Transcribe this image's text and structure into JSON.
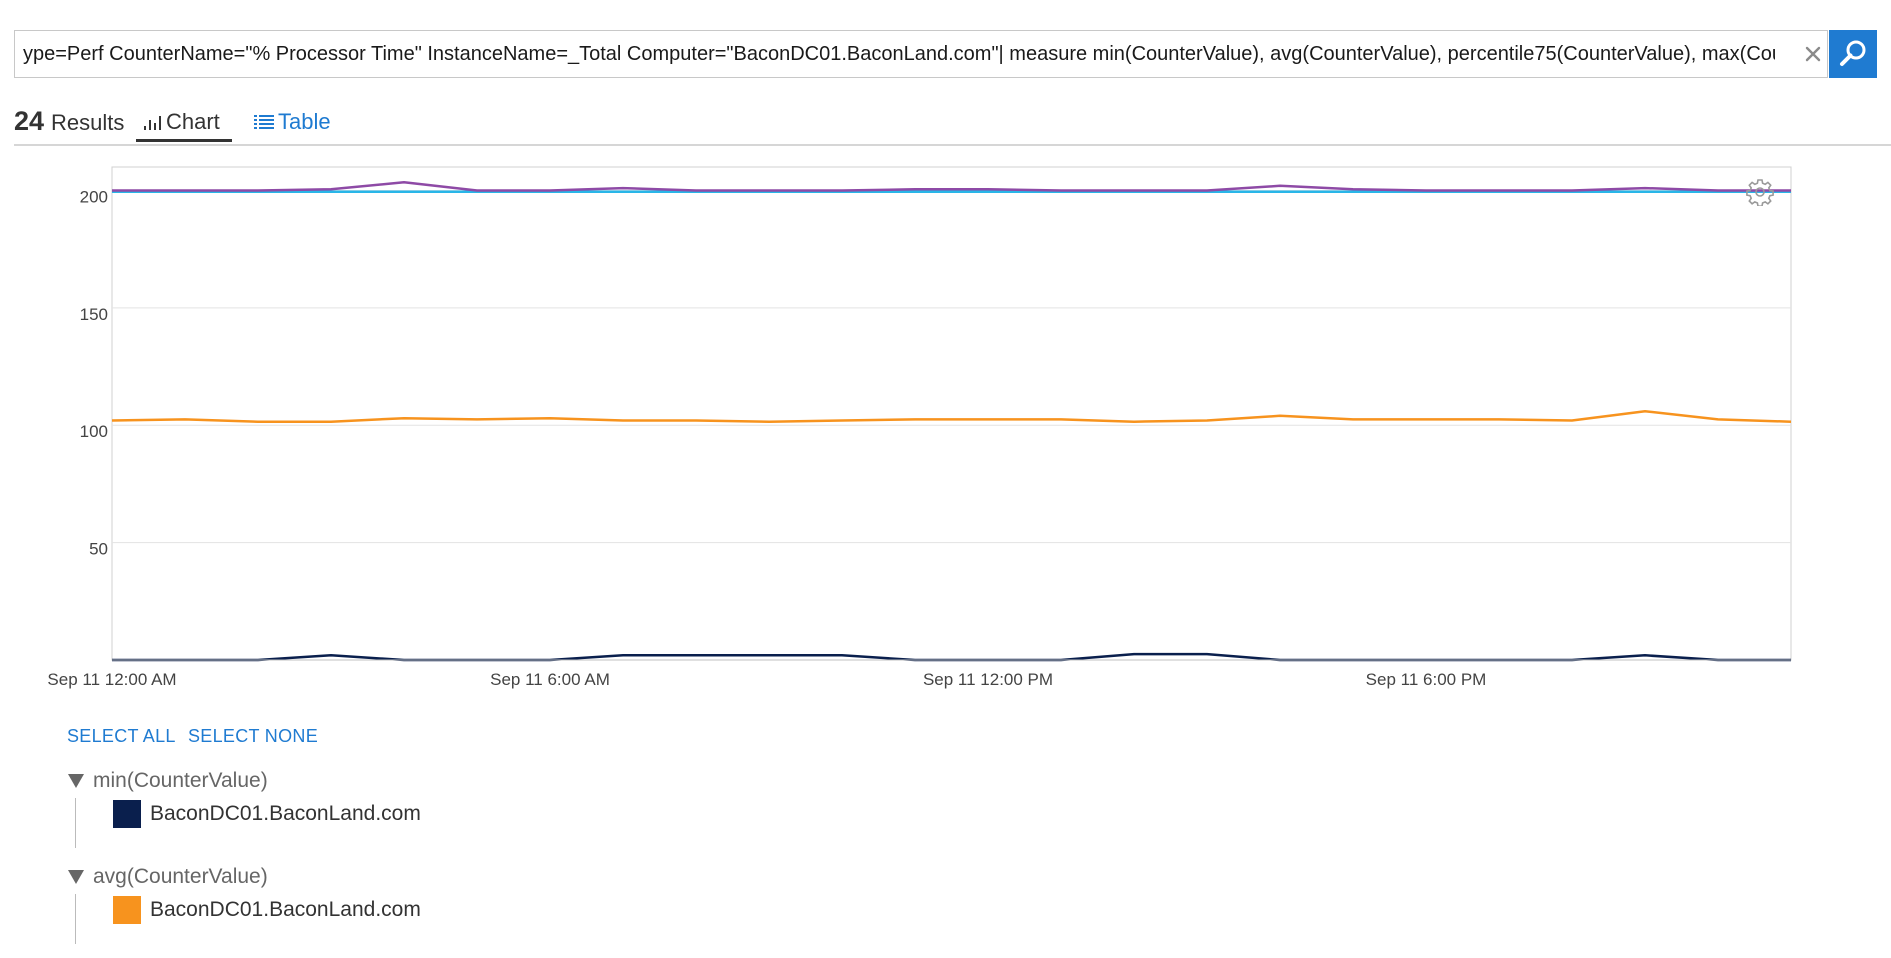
{
  "search": {
    "query": "ype=Perf CounterName=\"% Processor Time\" InstanceName=_Total Computer=\"BaconDC01.BaconLand.com\"| measure min(CounterValue), avg(CounterValue), percentile75(CounterValue), max(CounterVal"
  },
  "header": {
    "results_count": "24",
    "results_label": "Results",
    "tabs": [
      {
        "label": "Chart",
        "icon": "bar-chart-icon",
        "active": true
      },
      {
        "label": "Table",
        "icon": "table-icon",
        "active": false
      }
    ]
  },
  "chart_data": {
    "type": "line",
    "x_tick_labels": [
      "Sep 11 12:00 AM",
      "Sep 11 6:00 AM",
      "Sep 11 12:00 PM",
      "Sep 11 6:00 PM"
    ],
    "y_tick_labels": [
      "50",
      "100",
      "150",
      "200"
    ],
    "ylim": [
      0,
      210
    ],
    "grid": true,
    "x": [
      "00:00",
      "01:00",
      "02:00",
      "03:00",
      "04:00",
      "05:00",
      "06:00",
      "07:00",
      "08:00",
      "09:00",
      "10:00",
      "11:00",
      "12:00",
      "13:00",
      "14:00",
      "15:00",
      "16:00",
      "17:00",
      "18:00",
      "19:00",
      "20:00",
      "21:00",
      "22:00",
      "23:00"
    ],
    "series": [
      {
        "color": "#0a1f4d",
        "values": [
          0,
          0,
          0,
          2,
          0,
          0,
          0,
          2,
          2,
          2,
          2,
          0,
          0,
          0,
          2.5,
          2.5,
          0,
          0,
          0,
          0,
          0,
          2,
          0,
          0
        ]
      },
      {
        "color": "#f7931e",
        "values": [
          102,
          102.5,
          101.5,
          101.5,
          103,
          102.5,
          103,
          102,
          102,
          101.5,
          102,
          102.5,
          102.5,
          102.5,
          101.5,
          102,
          104,
          102.5,
          102.5,
          102.5,
          102,
          106,
          102.5,
          101.5
        ]
      },
      {
        "color": "#29b6e8",
        "values": [
          199.5,
          199.5,
          199.5,
          199.5,
          199.5,
          199.5,
          199.5,
          199.5,
          199.5,
          199.5,
          199.5,
          199.5,
          199.5,
          199.5,
          199.5,
          199.5,
          199.5,
          199.5,
          199.5,
          199.5,
          199.5,
          199.5,
          199.5,
          199.5
        ]
      },
      {
        "color": "#8e4aa6",
        "values": [
          200,
          200,
          200,
          200.5,
          203.5,
          200,
          200,
          201,
          200,
          200,
          200,
          200.5,
          200.5,
          200,
          200,
          200,
          202,
          200.5,
          200,
          200,
          200,
          201,
          200,
          200
        ]
      }
    ]
  },
  "legend": {
    "select_all": "SELECT ALL",
    "select_none": "SELECT NONE",
    "groups": [
      {
        "name": "min(CounterValue)",
        "items": [
          {
            "label": "BaconDC01.BaconLand.com",
            "color": "#0a1f4d"
          }
        ]
      },
      {
        "name": "avg(CounterValue)",
        "items": [
          {
            "label": "BaconDC01.BaconLand.com",
            "color": "#f7931e"
          }
        ]
      }
    ]
  }
}
